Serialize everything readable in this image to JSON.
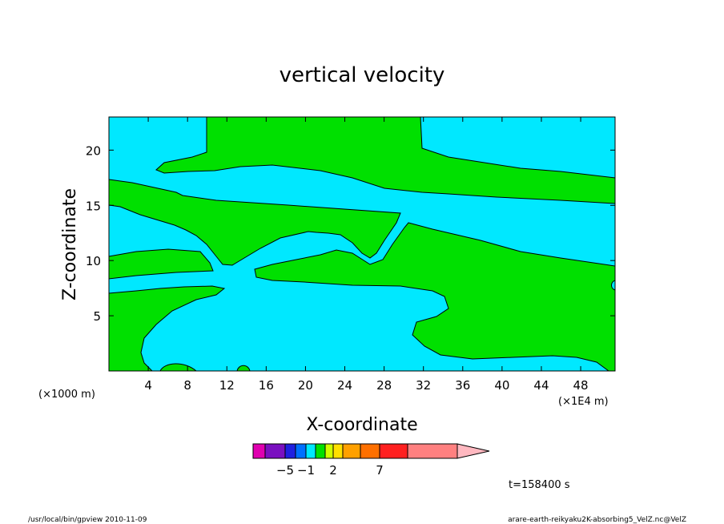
{
  "chart_data": {
    "type": "heatmap",
    "title": "vertical velocity",
    "xlabel": "X-coordinate",
    "ylabel": "Z-coordinate",
    "x_unit_left": "(×1000 m)",
    "x_unit_right": "(×1E4 m)",
    "xlim": [
      0,
      51.5
    ],
    "ylim": [
      0,
      23
    ],
    "x_ticks": [
      4,
      8,
      12,
      16,
      20,
      24,
      28,
      32,
      36,
      40,
      44,
      48
    ],
    "y_ticks": [
      5,
      10,
      15,
      20
    ],
    "time_label": "t=158400 s",
    "colorbar": {
      "colors": [
        "#e000b0",
        "#7a10c0",
        "#2020e0",
        "#0070ff",
        "#00e8ff",
        "#00e000",
        "#d0ff00",
        "#ffe000",
        "#ffa000",
        "#ff7000",
        "#ff2020",
        "#ff8080",
        "#ffb8c0"
      ],
      "labels": [
        {
          "text": "−5",
          "level": -5
        },
        {
          "text": "−1",
          "level": -1
        },
        {
          "text": "2",
          "level": 2
        },
        {
          "text": "7",
          "level": 7
        }
      ]
    },
    "field_colors": {
      "negative": "#00e8ff",
      "positive": "#00e000",
      "contour": "#000000"
    }
  },
  "footer": {
    "left": "/usr/local/bin/gpview  2010-11-09",
    "right": "arare-earth-reikyaku2K-absorbing5_VelZ.nc@VelZ"
  }
}
